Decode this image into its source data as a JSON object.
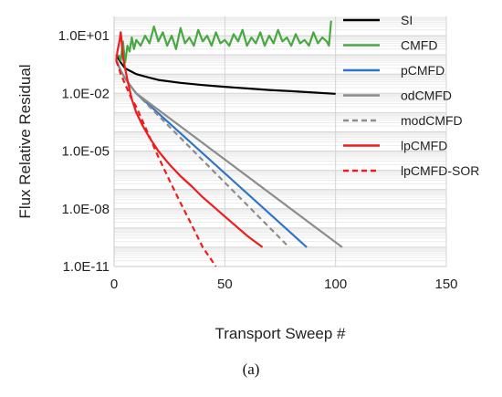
{
  "caption": "(a)",
  "chart_data": {
    "type": "line",
    "xlabel": "Transport Sweep #",
    "ylabel": "Flux Relative Residual",
    "xlim": [
      0,
      150
    ],
    "ylim": [
      1e-11,
      100
    ],
    "y_scale": "log",
    "x_ticks": [
      "0",
      "50",
      "100",
      "150"
    ],
    "y_ticks": [
      "1.0E-11",
      "1.0E-08",
      "1.0E-05",
      "1.0E-02",
      "1.0E+01"
    ],
    "grid": "horizontal",
    "legend_position": "right",
    "series": [
      {
        "name": "SI",
        "color": "#000000",
        "dash": "solid",
        "x": [
          1,
          3,
          5,
          10,
          15,
          20,
          30,
          40,
          50,
          60,
          70,
          80,
          90,
          100
        ],
        "y": [
          1.0,
          0.4,
          0.2,
          0.1,
          0.07,
          0.05,
          0.035,
          0.027,
          0.022,
          0.018,
          0.015,
          0.013,
          0.011,
          0.0095
        ]
      },
      {
        "name": "CMFD",
        "color": "#4aa843",
        "dash": "solid",
        "x": [
          2,
          3,
          4,
          5,
          6,
          7,
          8,
          9,
          10,
          12,
          14,
          16,
          18,
          20,
          22,
          24,
          26,
          28,
          30,
          32,
          34,
          36,
          38,
          40,
          42,
          44,
          46,
          48,
          50,
          52,
          54,
          56,
          58,
          60,
          62,
          64,
          66,
          68,
          70,
          72,
          74,
          76,
          78,
          80,
          82,
          84,
          86,
          88,
          90,
          92,
          94,
          96,
          97,
          98
        ],
        "y": [
          1.0,
          0.5,
          5,
          0.4,
          3,
          1.5,
          8,
          2,
          6,
          3,
          10,
          4,
          30,
          5,
          15,
          3,
          10,
          2,
          25,
          4,
          8,
          3,
          20,
          5,
          10,
          3,
          15,
          4,
          6,
          3,
          12,
          5,
          20,
          3,
          8,
          4,
          15,
          3,
          10,
          4,
          20,
          5,
          8,
          3,
          12,
          4,
          6,
          3,
          15,
          4,
          8,
          5,
          3,
          60
        ]
      },
      {
        "name": "pCMFD",
        "color": "#2e75c9",
        "dash": "solid",
        "x": [
          1,
          3,
          5,
          8,
          10,
          87
        ],
        "y": [
          0.5,
          0.15,
          0.06,
          0.02,
          0.01,
          1e-10
        ]
      },
      {
        "name": "odCMFD",
        "color": "#8c8c8c",
        "dash": "solid",
        "x": [
          1,
          3,
          5,
          8,
          10,
          103
        ],
        "y": [
          0.5,
          0.15,
          0.06,
          0.02,
          0.01,
          1e-10
        ]
      },
      {
        "name": "modCMFD",
        "color": "#8c8c8c",
        "dash": "dashed",
        "x": [
          1,
          3,
          5,
          8,
          10,
          79
        ],
        "y": [
          0.5,
          0.15,
          0.06,
          0.02,
          0.01,
          1e-10
        ]
      },
      {
        "name": "lpCMFD",
        "color": "#ee1c1c",
        "dash": "solid",
        "x": [
          1,
          1.5,
          2,
          2.5,
          3,
          3.5,
          4,
          5,
          6,
          8,
          10,
          13,
          16,
          20,
          25,
          30,
          35,
          40,
          50,
          60,
          67
        ],
        "y": [
          0.5,
          1.5,
          3,
          6,
          15,
          4,
          0.8,
          0.2,
          0.05,
          0.005,
          0.001,
          0.0002,
          5e-05,
          1e-05,
          2e-06,
          5e-07,
          1.5e-07,
          4e-08,
          4e-09,
          4e-10,
          1e-10
        ]
      },
      {
        "name": "lpCMFD-SOR",
        "color": "#ee1c1c",
        "dash": "dashed",
        "x": [
          1,
          3,
          5,
          8,
          10,
          15,
          20,
          25,
          30,
          35,
          40,
          46
        ],
        "y": [
          0.5,
          0.1,
          0.03,
          0.005,
          0.002,
          0.0001,
          5e-06,
          3e-07,
          2e-08,
          1.5e-09,
          1e-10,
          1e-11
        ]
      }
    ]
  }
}
